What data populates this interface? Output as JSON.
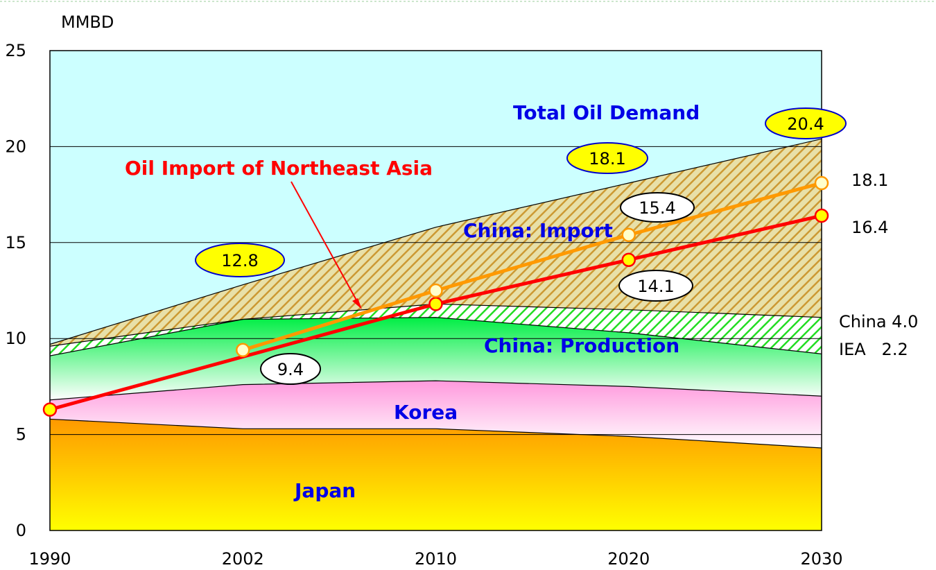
{
  "chart_data": {
    "type": "area",
    "ylabel": "MMBD",
    "ylim": [
      0,
      25
    ],
    "yticks": [
      0,
      5,
      10,
      15,
      20,
      25
    ],
    "x": [
      "1990",
      "2002",
      "2010",
      "2020",
      "2030"
    ],
    "stacked_boundaries": {
      "japan": [
        5.8,
        5.3,
        5.3,
        4.9,
        4.3
      ],
      "korea_top": [
        6.8,
        7.6,
        7.8,
        7.5,
        7.0
      ],
      "china_production_iea_top": [
        9.1,
        11.0,
        11.1,
        10.3,
        9.2
      ],
      "china_production_china_top": [
        9.6,
        11.0,
        11.8,
        11.5,
        11.1
      ],
      "total_oil_demand": [
        9.7,
        12.8,
        15.8,
        18.1,
        20.4
      ]
    },
    "series": [
      {
        "name": "Oil Import of Northeast Asia",
        "color": "#ff0000",
        "values": [
          6.3,
          null,
          11.8,
          14.1,
          16.4
        ]
      },
      {
        "name": "",
        "color": "#ff9900",
        "values": [
          null,
          9.4,
          12.5,
          15.4,
          18.1
        ]
      }
    ],
    "region_labels": {
      "total": "Total Oil Demand",
      "china_import": "China: Import",
      "china_production": "China: Production",
      "korea": "Korea",
      "japan": "Japan"
    },
    "title_annotation": "Oil Import of Northeast Asia",
    "callouts": [
      {
        "text": "12.8",
        "style": "yellow"
      },
      {
        "text": "18.1",
        "style": "yellow"
      },
      {
        "text": "20.4",
        "style": "yellow"
      },
      {
        "text": "15.4",
        "style": "white"
      },
      {
        "text": "14.1",
        "style": "white"
      },
      {
        "text": "9.4",
        "style": "white"
      }
    ],
    "side_labels": [
      "18.1",
      "16.4",
      "China 4.0",
      "IEA   2.2"
    ],
    "colors": {
      "sky": "#ccffff",
      "import_hatch": "#cc9933",
      "production_green": "#00ee44",
      "korea_pink": "#ff99dd",
      "japan_orange": "#ff9900",
      "japan_yellow": "#ffff00",
      "callout_yellow": "#ffff00",
      "label_blue": "#0000e6"
    }
  }
}
